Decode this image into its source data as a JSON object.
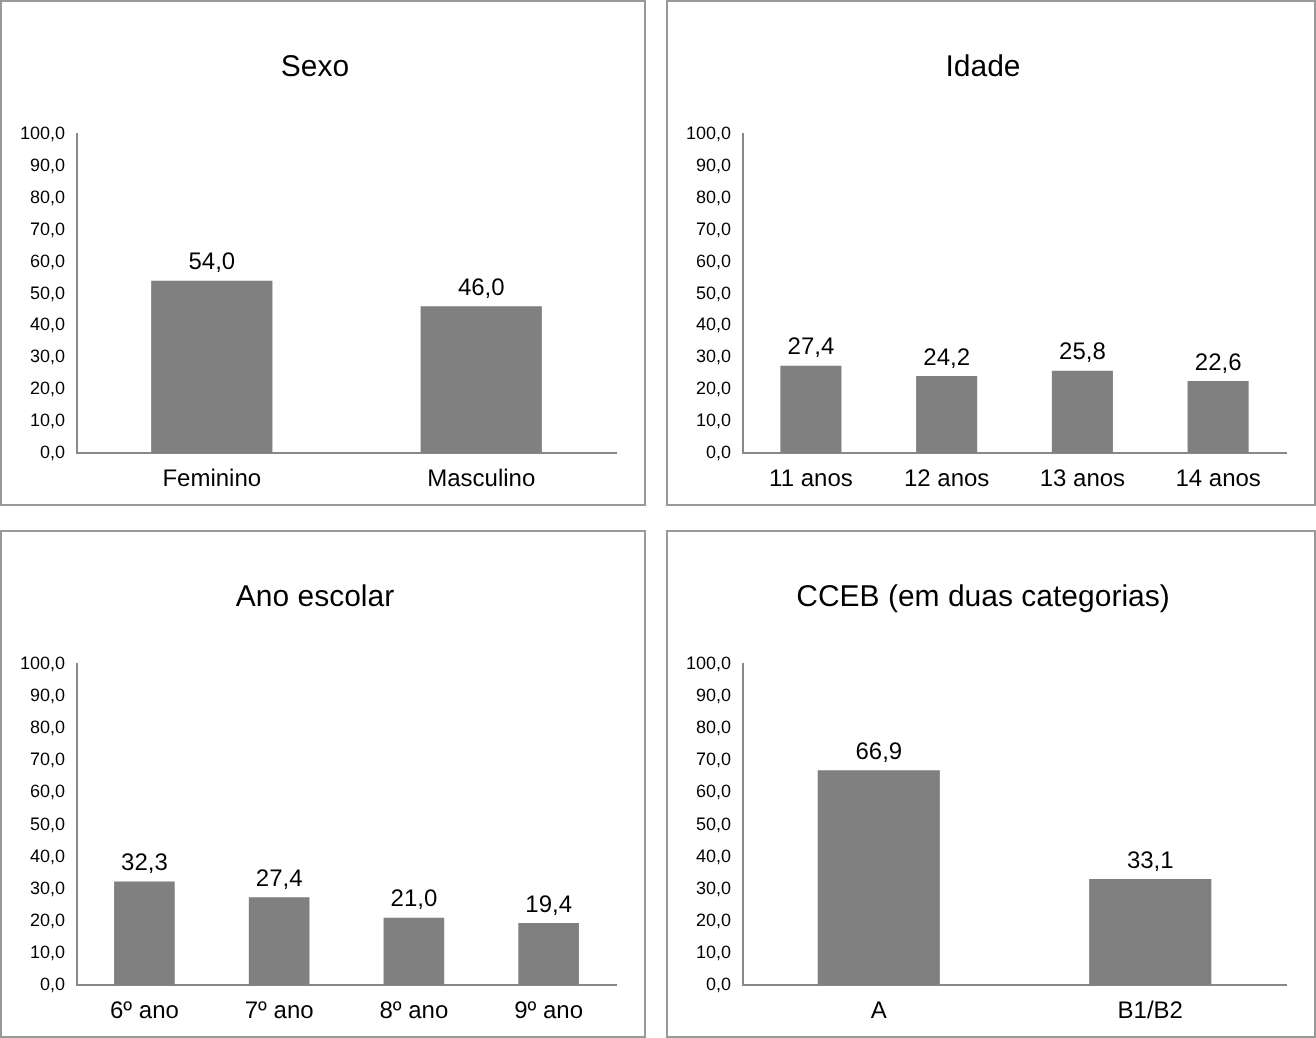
{
  "chart_data": [
    {
      "type": "bar",
      "title": "Sexo",
      "categories": [
        "Feminino",
        "Masculino"
      ],
      "values": [
        54.0,
        46.0
      ],
      "value_labels": [
        "54,0",
        "46,0"
      ],
      "color": "#808080",
      "ylim": [
        0,
        100
      ],
      "yticks": [
        {
          "value": 0,
          "label": "0,0"
        },
        {
          "value": 10,
          "label": "10,0"
        },
        {
          "value": 20,
          "label": "20,0"
        },
        {
          "value": 30,
          "label": "30,0"
        },
        {
          "value": 40,
          "label": "40,0"
        },
        {
          "value": 50,
          "label": "50,0"
        },
        {
          "value": 60,
          "label": "60,0"
        },
        {
          "value": 70,
          "label": "70,0"
        },
        {
          "value": 80,
          "label": "80,0"
        },
        {
          "value": 90,
          "label": "90,0"
        },
        {
          "value": 100,
          "label": "100,0"
        }
      ],
      "grid": false,
      "legend": false
    },
    {
      "type": "bar",
      "title": "Idade",
      "categories": [
        "11 anos",
        "12 anos",
        "13 anos",
        "14 anos"
      ],
      "values": [
        27.4,
        24.2,
        25.8,
        22.6
      ],
      "value_labels": [
        "27,4",
        "24,2",
        "25,8",
        "22,6"
      ],
      "color": "#808080",
      "ylim": [
        0,
        100
      ],
      "yticks": [
        {
          "value": 0,
          "label": "0,0"
        },
        {
          "value": 10,
          "label": "10,0"
        },
        {
          "value": 20,
          "label": "20,0"
        },
        {
          "value": 30,
          "label": "30,0"
        },
        {
          "value": 40,
          "label": "40,0"
        },
        {
          "value": 50,
          "label": "50,0"
        },
        {
          "value": 60,
          "label": "60,0"
        },
        {
          "value": 70,
          "label": "70,0"
        },
        {
          "value": 80,
          "label": "80,0"
        },
        {
          "value": 90,
          "label": "90,0"
        },
        {
          "value": 100,
          "label": "100,0"
        }
      ],
      "grid": false,
      "legend": false
    },
    {
      "type": "bar",
      "title": "Ano escolar",
      "categories": [
        "6º ano",
        "7º ano",
        "8º ano",
        "9º ano"
      ],
      "values": [
        32.3,
        27.4,
        21.0,
        19.4
      ],
      "value_labels": [
        "32,3",
        "27,4",
        "21,0",
        "19,4"
      ],
      "color": "#808080",
      "ylim": [
        0,
        100
      ],
      "yticks": [
        {
          "value": 0,
          "label": "0,0"
        },
        {
          "value": 10,
          "label": "10,0"
        },
        {
          "value": 20,
          "label": "20,0"
        },
        {
          "value": 30,
          "label": "30,0"
        },
        {
          "value": 40,
          "label": "40,0"
        },
        {
          "value": 50,
          "label": "50,0"
        },
        {
          "value": 60,
          "label": "60,0"
        },
        {
          "value": 70,
          "label": "70,0"
        },
        {
          "value": 80,
          "label": "80,0"
        },
        {
          "value": 90,
          "label": "90,0"
        },
        {
          "value": 100,
          "label": "100,0"
        }
      ],
      "grid": false,
      "legend": false
    },
    {
      "type": "bar",
      "title": "CCEB (em duas categorias)",
      "categories": [
        "A",
        "B1/B2"
      ],
      "values": [
        66.9,
        33.1
      ],
      "value_labels": [
        "66,9",
        "33,1"
      ],
      "color": "#808080",
      "ylim": [
        0,
        100
      ],
      "yticks": [
        {
          "value": 0,
          "label": "0,0"
        },
        {
          "value": 10,
          "label": "10,0"
        },
        {
          "value": 20,
          "label": "20,0"
        },
        {
          "value": 30,
          "label": "30,0"
        },
        {
          "value": 40,
          "label": "40,0"
        },
        {
          "value": 50,
          "label": "50,0"
        },
        {
          "value": 60,
          "label": "60,0"
        },
        {
          "value": 70,
          "label": "70,0"
        },
        {
          "value": 80,
          "label": "80,0"
        },
        {
          "value": 90,
          "label": "90,0"
        },
        {
          "value": 100,
          "label": "100,0"
        }
      ],
      "grid": false,
      "legend": false
    }
  ]
}
